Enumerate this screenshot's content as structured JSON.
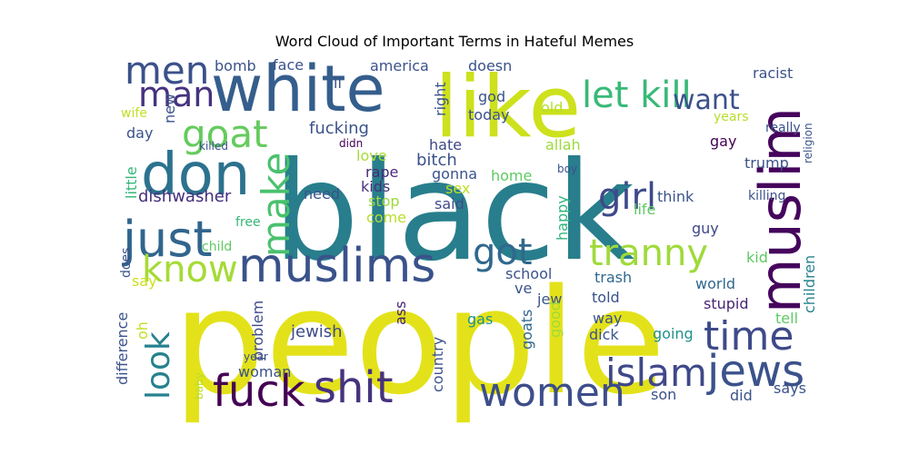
{
  "chart_data": {
    "type": "wordcloud",
    "title": "Word Cloud of Important Terms in Hateful Memes",
    "words": [
      {
        "text": "people",
        "color": "#e3e21a"
      },
      {
        "text": "black",
        "color": "#287e8c"
      },
      {
        "text": "white",
        "color": "#355e8c"
      },
      {
        "text": "like",
        "color": "#cde11c"
      },
      {
        "text": "muslim",
        "color": "#45055c"
      },
      {
        "text": "don",
        "color": "#2c728e"
      },
      {
        "text": "just",
        "color": "#31658d"
      },
      {
        "text": "muslims",
        "color": "#3a528b"
      },
      {
        "text": "fuck",
        "color": "#440154"
      },
      {
        "text": "shit",
        "color": "#46327e"
      },
      {
        "text": "women",
        "color": "#3d4e8a"
      },
      {
        "text": "jews",
        "color": "#3b528b"
      },
      {
        "text": "islam",
        "color": "#3f4889"
      },
      {
        "text": "time",
        "color": "#3e4a89"
      },
      {
        "text": "tranny",
        "color": "#9fda3a"
      },
      {
        "text": "let kill",
        "color": "#38b977"
      },
      {
        "text": "men",
        "color": "#3b518b"
      },
      {
        "text": "man",
        "color": "#46337f"
      },
      {
        "text": "goat",
        "color": "#65cb5e"
      },
      {
        "text": "make",
        "color": "#4ac16d"
      },
      {
        "text": "know",
        "color": "#a5db36"
      },
      {
        "text": "got",
        "color": "#31688e"
      },
      {
        "text": "girl",
        "color": "#3e4989"
      },
      {
        "text": "look",
        "color": "#26818e"
      },
      {
        "text": "want",
        "color": "#3b518b"
      },
      {
        "text": "fucking",
        "color": "#3b528b"
      },
      {
        "text": "dishwasher",
        "color": "#46307e"
      },
      {
        "text": "jewish",
        "color": "#3e4c8a"
      },
      {
        "text": "hate",
        "color": "#3f4788"
      },
      {
        "text": "bitch",
        "color": "#3b528b"
      },
      {
        "text": "love",
        "color": "#a8db34"
      },
      {
        "text": "rape",
        "color": "#482979"
      },
      {
        "text": "kids",
        "color": "#46307e"
      },
      {
        "text": "stop",
        "color": "#9bd93c"
      },
      {
        "text": "need",
        "color": "#3b528b"
      },
      {
        "text": "said",
        "color": "#3e4c8a"
      },
      {
        "text": "come",
        "color": "#b8de29"
      },
      {
        "text": "gonna",
        "color": "#3b528b"
      },
      {
        "text": "sex",
        "color": "#c2df23"
      },
      {
        "text": "home",
        "color": "#5ec962"
      },
      {
        "text": "allah",
        "color": "#9dd93b"
      },
      {
        "text": "happy",
        "color": "#2fb47c"
      },
      {
        "text": "life",
        "color": "#5ec962"
      },
      {
        "text": "think",
        "color": "#3b528b"
      },
      {
        "text": "guy",
        "color": "#3f4889"
      },
      {
        "text": "kid",
        "color": "#5ec962"
      },
      {
        "text": "children",
        "color": "#26828e"
      },
      {
        "text": "school",
        "color": "#3b528b"
      },
      {
        "text": "ve",
        "color": "#3b528b"
      },
      {
        "text": "jew",
        "color": "#3b528b"
      },
      {
        "text": "trash",
        "color": "#31688e"
      },
      {
        "text": "told",
        "color": "#3b528b"
      },
      {
        "text": "world",
        "color": "#31688e"
      },
      {
        "text": "stupid",
        "color": "#482475"
      },
      {
        "text": "tell",
        "color": "#5ec962"
      },
      {
        "text": "way",
        "color": "#3b528b"
      },
      {
        "text": "dick",
        "color": "#3b528b"
      },
      {
        "text": "going",
        "color": "#21918c"
      },
      {
        "text": "gas",
        "color": "#21918c"
      },
      {
        "text": "goats",
        "color": "#31688e"
      },
      {
        "text": "good",
        "color": "#9fda3a"
      },
      {
        "text": "ass",
        "color": "#482475"
      },
      {
        "text": "country",
        "color": "#3b528b"
      },
      {
        "text": "problem",
        "color": "#3e4c8a"
      },
      {
        "text": "woman",
        "color": "#3b528b"
      },
      {
        "text": "difference",
        "color": "#3b528b"
      },
      {
        "text": "oh",
        "color": "#c2df23"
      },
      {
        "text": "say",
        "color": "#cde11c"
      },
      {
        "text": "does",
        "color": "#3b528b"
      },
      {
        "text": "child",
        "color": "#5ec962"
      },
      {
        "text": "free",
        "color": "#35b779"
      },
      {
        "text": "little",
        "color": "#35b779"
      },
      {
        "text": "day",
        "color": "#3b528b"
      },
      {
        "text": "new",
        "color": "#3b528b"
      },
      {
        "text": "wife",
        "color": "#c2df23"
      },
      {
        "text": "bomb",
        "color": "#3b528b"
      },
      {
        "text": "face",
        "color": "#3b528b"
      },
      {
        "text": "ll",
        "color": "#3b528b"
      },
      {
        "text": "america",
        "color": "#3b528b"
      },
      {
        "text": "doesn",
        "color": "#3b528b"
      },
      {
        "text": "right",
        "color": "#3b528b"
      },
      {
        "text": "god",
        "color": "#3b528b"
      },
      {
        "text": "today",
        "color": "#3b528b"
      },
      {
        "text": "old",
        "color": "#b5de2b"
      },
      {
        "text": "racist",
        "color": "#3b528b"
      },
      {
        "text": "years",
        "color": "#b5de2b"
      },
      {
        "text": "gay",
        "color": "#440154"
      },
      {
        "text": "really",
        "color": "#3b528b"
      },
      {
        "text": "religion",
        "color": "#3b528b"
      },
      {
        "text": "trump",
        "color": "#3b528b"
      },
      {
        "text": "killing",
        "color": "#3b528b"
      },
      {
        "text": "boy",
        "color": "#3b528b"
      },
      {
        "text": "killed",
        "color": "#3b528b"
      },
      {
        "text": "didn",
        "color": "#440154"
      },
      {
        "text": "baby",
        "color": "#b8de29"
      },
      {
        "text": "year",
        "color": "#3b528b"
      },
      {
        "text": "son",
        "color": "#3b528b"
      },
      {
        "text": "did",
        "color": "#3b528b"
      },
      {
        "text": "says",
        "color": "#3b528b"
      }
    ]
  }
}
